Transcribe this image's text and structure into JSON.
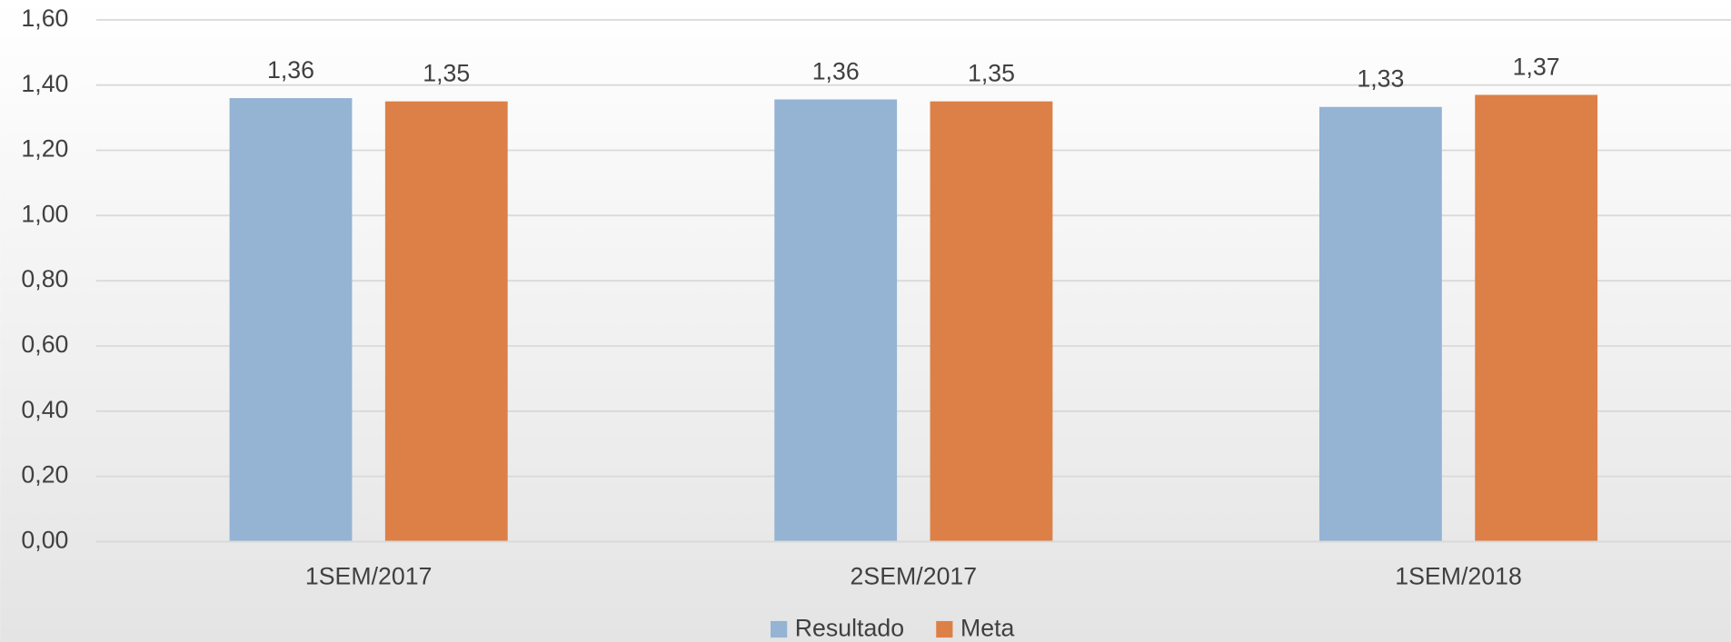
{
  "chart_data": {
    "type": "bar",
    "categories": [
      "1SEM/2017",
      "2SEM/2017",
      "1SEM/2018"
    ],
    "series": [
      {
        "name": "Resultado",
        "color": "#95b3d3",
        "values": [
          1.36,
          1.356,
          1.333
        ],
        "value_labels": [
          "1,36",
          "1,36",
          "1,33"
        ]
      },
      {
        "name": "Meta",
        "color": "#dd8047",
        "values": [
          1.35,
          1.35,
          1.37
        ],
        "value_labels": [
          "1,35",
          "1,35",
          "1,37"
        ]
      }
    ],
    "ylim": [
      0,
      1.6
    ],
    "yticks": [
      {
        "value": 0,
        "label": "0,00"
      },
      {
        "value": 0.2,
        "label": "0,20"
      },
      {
        "value": 0.4,
        "label": "0,40"
      },
      {
        "value": 0.6,
        "label": "0,60"
      },
      {
        "value": 0.8,
        "label": "0,80"
      },
      {
        "value": 1.0,
        "label": "1,00"
      },
      {
        "value": 1.2,
        "label": "1,20"
      },
      {
        "value": 1.4,
        "label": "1,40"
      },
      {
        "value": 1.6,
        "label": "1,60"
      }
    ],
    "grid": true,
    "legend": "bottom"
  }
}
